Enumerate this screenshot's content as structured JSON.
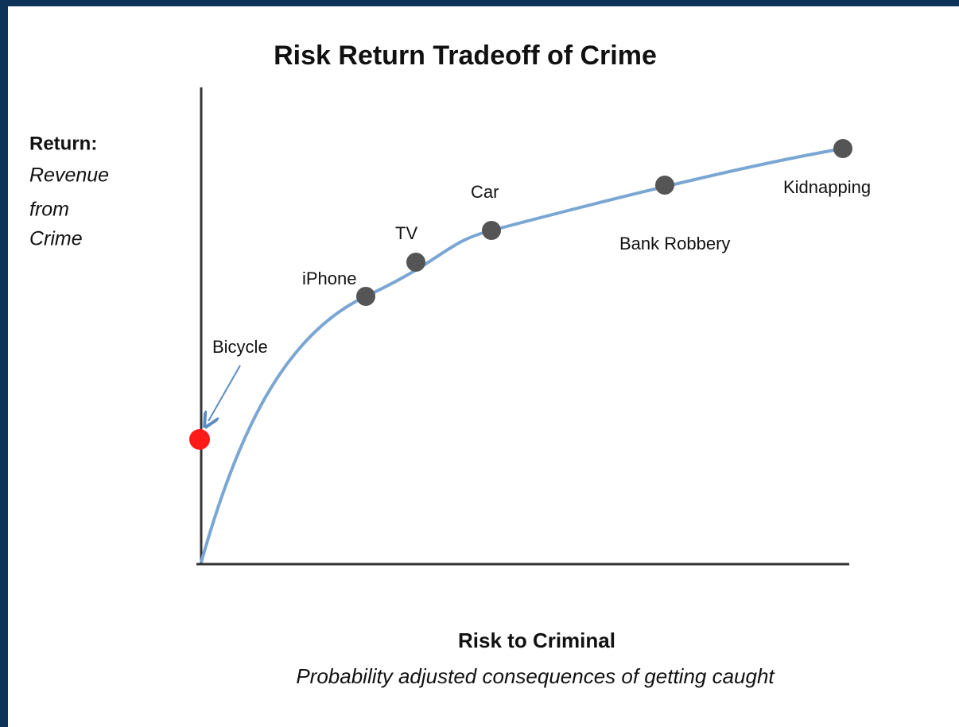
{
  "title": "Risk Return Tradeoff of Crime",
  "y_axis": {
    "label": "Return:",
    "sublabel": [
      "Revenue",
      "from",
      "Crime"
    ]
  },
  "x_axis": {
    "label": "Risk to Criminal",
    "sublabel": "Probability adjusted consequences of getting caught"
  },
  "points": [
    "Bicycle",
    "iPhone",
    "TV",
    "Car",
    "Bank Robbery",
    "Kidnapping"
  ]
}
